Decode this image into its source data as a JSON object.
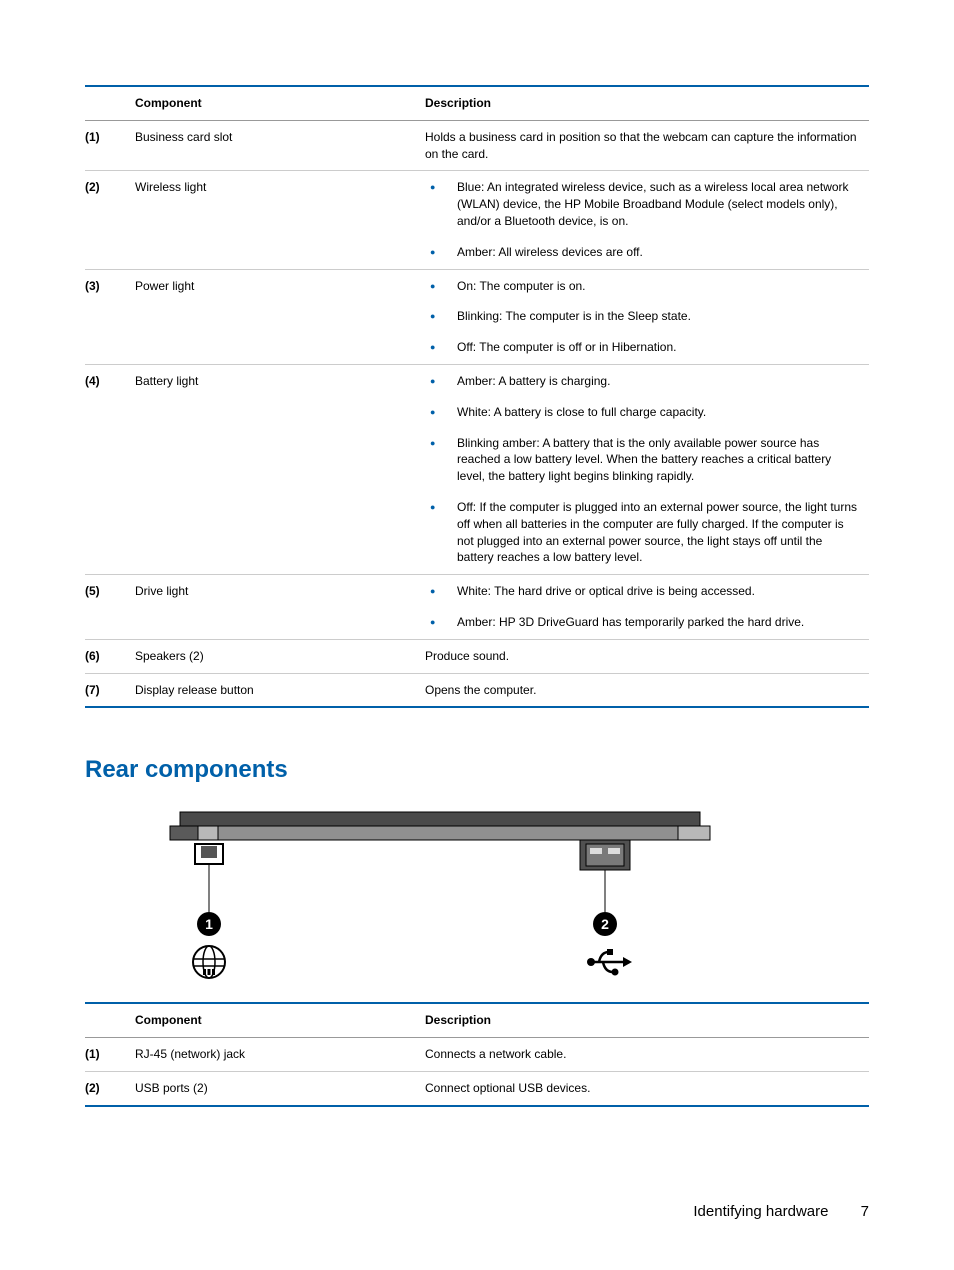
{
  "accent_color": "#0060a9",
  "border_color": "#cccccc",
  "text_color": "#000000",
  "table1": {
    "headers": {
      "component": "Component",
      "description": "Description"
    },
    "rows": [
      {
        "idx": "(1)",
        "component": "Business card slot",
        "desc_type": "text",
        "desc_text": "Holds a business card in position so that the webcam can capture the information on the card."
      },
      {
        "idx": "(2)",
        "component": "Wireless light",
        "desc_type": "list",
        "items": [
          "Blue: An integrated wireless device, such as a wireless local area network (WLAN) device, the HP Mobile Broadband Module (select models only), and/or a Bluetooth device, is on.",
          "Amber: All wireless devices are off."
        ]
      },
      {
        "idx": "(3)",
        "component": "Power light",
        "desc_type": "list",
        "items": [
          "On: The computer is on.",
          "Blinking: The computer is in the Sleep state.",
          "Off: The computer is off or in Hibernation."
        ]
      },
      {
        "idx": "(4)",
        "component": "Battery light",
        "desc_type": "list",
        "items": [
          "Amber: A battery is charging.",
          "White: A battery is close to full charge capacity.",
          "Blinking amber: A battery that is the only available power source has reached a low battery level. When the battery reaches a critical battery level, the battery light begins blinking rapidly.",
          "Off: If the computer is plugged into an external power source, the light turns off when all batteries in the computer are fully charged. If the computer is not plugged into an external power source, the light stays off until the battery reaches a low battery level."
        ]
      },
      {
        "idx": "(5)",
        "component": "Drive light",
        "desc_type": "list",
        "items": [
          "White: The hard drive or optical drive is being accessed.",
          "Amber: HP 3D DriveGuard has temporarily parked the hard drive."
        ]
      },
      {
        "idx": "(6)",
        "component": "Speakers (2)",
        "desc_type": "text",
        "desc_text": "Produce sound."
      },
      {
        "idx": "(7)",
        "component": "Display release button",
        "desc_type": "text",
        "desc_text": "Opens the computer."
      }
    ]
  },
  "section_heading": "Rear components",
  "diagram": {
    "callout1": "1",
    "callout2": "2"
  },
  "table2": {
    "headers": {
      "component": "Component",
      "description": "Description"
    },
    "rows": [
      {
        "idx": "(1)",
        "component": "RJ-45 (network) jack",
        "desc_type": "text",
        "desc_text": "Connects a network cable."
      },
      {
        "idx": "(2)",
        "component": "USB ports (2)",
        "desc_type": "text",
        "desc_text": "Connect optional USB devices."
      }
    ]
  },
  "footer": {
    "section": "Identifying hardware",
    "page": "7"
  }
}
